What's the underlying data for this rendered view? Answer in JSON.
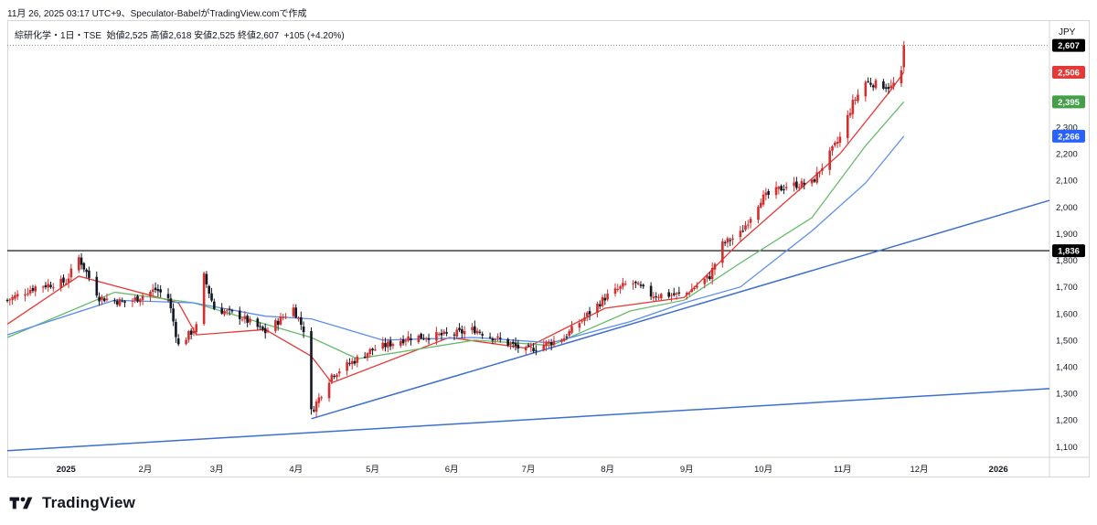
{
  "header": {
    "caption": "11月 26, 2025 03:17 UTC+9、Speculator-BabelがTradingView.comで作成",
    "legend": "綜研化学・1日・TSE",
    "legend_ohlc": "始値2,525  高値2,618  安値2,525  終値2,607",
    "legend_change": "+105 (+4.20%)",
    "currency": "JPY"
  },
  "brand": {
    "name": "TradingView"
  },
  "colors": {
    "up": "#131722",
    "down": "#d32f2f",
    "ma_short": "#e53935",
    "ma_mid": "#66bb6a",
    "ma_long": "#5b8def",
    "trendline": "#3d6fcf",
    "hline": "#000000"
  },
  "chart_data": {
    "type": "candlestick",
    "y_ticks": [
      "1,100",
      "1,200",
      "1,300",
      "1,400",
      "1,500",
      "1,600",
      "1,700",
      "1,800",
      "1,900",
      "2,000",
      "2,100",
      "2,200",
      "2,300"
    ],
    "ylim": [
      1060,
      2640
    ],
    "x_ticks": [
      {
        "label": "2025",
        "date": "2025-01-01",
        "bold": true
      },
      {
        "label": "2月",
        "date": "2025-02-01"
      },
      {
        "label": "3月",
        "date": "2025-03-01"
      },
      {
        "label": "4月",
        "date": "2025-04-01"
      },
      {
        "label": "5月",
        "date": "2025-05-01"
      },
      {
        "label": "6月",
        "date": "2025-06-01"
      },
      {
        "label": "7月",
        "date": "2025-07-01"
      },
      {
        "label": "8月",
        "date": "2025-08-01"
      },
      {
        "label": "9月",
        "date": "2025-09-01"
      },
      {
        "label": "10月",
        "date": "2025-10-01"
      },
      {
        "label": "11月",
        "date": "2025-11-01"
      },
      {
        "label": "12月",
        "date": "2025-12-01"
      },
      {
        "label": "2026",
        "date": "2026-01-01",
        "bold": true
      }
    ],
    "xlim": [
      "2024-12-09",
      "2026-01-21"
    ],
    "price_path": [
      [
        "2024-12-09",
        1650
      ],
      [
        "2024-12-20",
        1700
      ],
      [
        "2025-01-01",
        1720
      ],
      [
        "2025-01-06",
        1810
      ],
      [
        "2025-01-14",
        1660
      ],
      [
        "2025-01-25",
        1640
      ],
      [
        "2025-02-05",
        1690
      ],
      [
        "2025-02-10",
        1660
      ],
      [
        "2025-02-14",
        1480
      ],
      [
        "2025-02-21",
        1550
      ],
      [
        "2025-02-24",
        1740
      ],
      [
        "2025-02-28",
        1620
      ],
      [
        "2025-03-10",
        1590
      ],
      [
        "2025-03-20",
        1530
      ],
      [
        "2025-03-31",
        1620
      ],
      [
        "2025-04-04",
        1540
      ],
      [
        "2025-04-07",
        1230
      ],
      [
        "2025-04-15",
        1370
      ],
      [
        "2025-04-30",
        1460
      ],
      [
        "2025-05-15",
        1510
      ],
      [
        "2025-05-31",
        1520
      ],
      [
        "2025-06-10",
        1540
      ],
      [
        "2025-06-30",
        1460
      ],
      [
        "2025-07-15",
        1510
      ],
      [
        "2025-07-31",
        1660
      ],
      [
        "2025-08-10",
        1720
      ],
      [
        "2025-08-18",
        1670
      ],
      [
        "2025-08-31",
        1670
      ],
      [
        "2025-09-10",
        1740
      ],
      [
        "2025-09-15",
        1860
      ],
      [
        "2025-09-22",
        1900
      ],
      [
        "2025-09-30",
        2030
      ],
      [
        "2025-10-10",
        2080
      ],
      [
        "2025-10-20",
        2090
      ],
      [
        "2025-10-31",
        2260
      ],
      [
        "2025-11-05",
        2390
      ],
      [
        "2025-11-10",
        2470
      ],
      [
        "2025-11-20",
        2450
      ],
      [
        "2025-11-24",
        2500
      ],
      [
        "2025-11-25",
        2607
      ]
    ],
    "moving_averages": [
      {
        "key": "ma_short",
        "points": [
          [
            "2024-12-09",
            1560
          ],
          [
            "2025-01-06",
            1740
          ],
          [
            "2025-02-14",
            1640
          ],
          [
            "2025-02-21",
            1520
          ],
          [
            "2025-03-20",
            1540
          ],
          [
            "2025-04-07",
            1440
          ],
          [
            "2025-04-15",
            1340
          ],
          [
            "2025-05-31",
            1510
          ],
          [
            "2025-06-30",
            1470
          ],
          [
            "2025-07-31",
            1620
          ],
          [
            "2025-08-31",
            1660
          ],
          [
            "2025-09-22",
            1870
          ],
          [
            "2025-10-31",
            2200
          ],
          [
            "2025-11-20",
            2440
          ],
          [
            "2025-11-25",
            2506
          ]
        ]
      },
      {
        "key": "ma_mid",
        "points": [
          [
            "2024-12-09",
            1510
          ],
          [
            "2025-01-20",
            1680
          ],
          [
            "2025-02-20",
            1640
          ],
          [
            "2025-03-20",
            1560
          ],
          [
            "2025-04-07",
            1510
          ],
          [
            "2025-04-25",
            1430
          ],
          [
            "2025-06-10",
            1500
          ],
          [
            "2025-07-10",
            1480
          ],
          [
            "2025-08-10",
            1610
          ],
          [
            "2025-08-31",
            1650
          ],
          [
            "2025-09-22",
            1790
          ],
          [
            "2025-10-20",
            1960
          ],
          [
            "2025-11-10",
            2230
          ],
          [
            "2025-11-25",
            2395
          ]
        ]
      },
      {
        "key": "ma_long",
        "points": [
          [
            "2024-12-09",
            1520
          ],
          [
            "2025-01-20",
            1650
          ],
          [
            "2025-02-20",
            1640
          ],
          [
            "2025-03-20",
            1590
          ],
          [
            "2025-04-07",
            1580
          ],
          [
            "2025-05-05",
            1500
          ],
          [
            "2025-06-10",
            1510
          ],
          [
            "2025-07-10",
            1490
          ],
          [
            "2025-08-10",
            1570
          ],
          [
            "2025-08-31",
            1640
          ],
          [
            "2025-09-22",
            1700
          ],
          [
            "2025-10-20",
            1910
          ],
          [
            "2025-11-10",
            2090
          ],
          [
            "2025-11-25",
            2266
          ]
        ]
      }
    ],
    "trendlines": [
      {
        "from": [
          "2025-04-07",
          1205
        ],
        "to": [
          "2026-01-21",
          2025
        ]
      },
      {
        "from": [
          "2024-12-09",
          1085
        ],
        "to": [
          "2026-01-21",
          1318
        ]
      }
    ],
    "hline": 1836,
    "badges": [
      {
        "label": "2,607",
        "value": 2607,
        "bg": "#000000"
      },
      {
        "label": "2,506",
        "value": 2506,
        "bg": "#e53935"
      },
      {
        "label": "2,395",
        "value": 2395,
        "bg": "#43a047"
      },
      {
        "label": "2,266",
        "value": 2266,
        "bg": "#2962ff"
      },
      {
        "label": "1,836",
        "value": 1836,
        "bg": "#000000"
      }
    ],
    "last_price": 2607
  }
}
